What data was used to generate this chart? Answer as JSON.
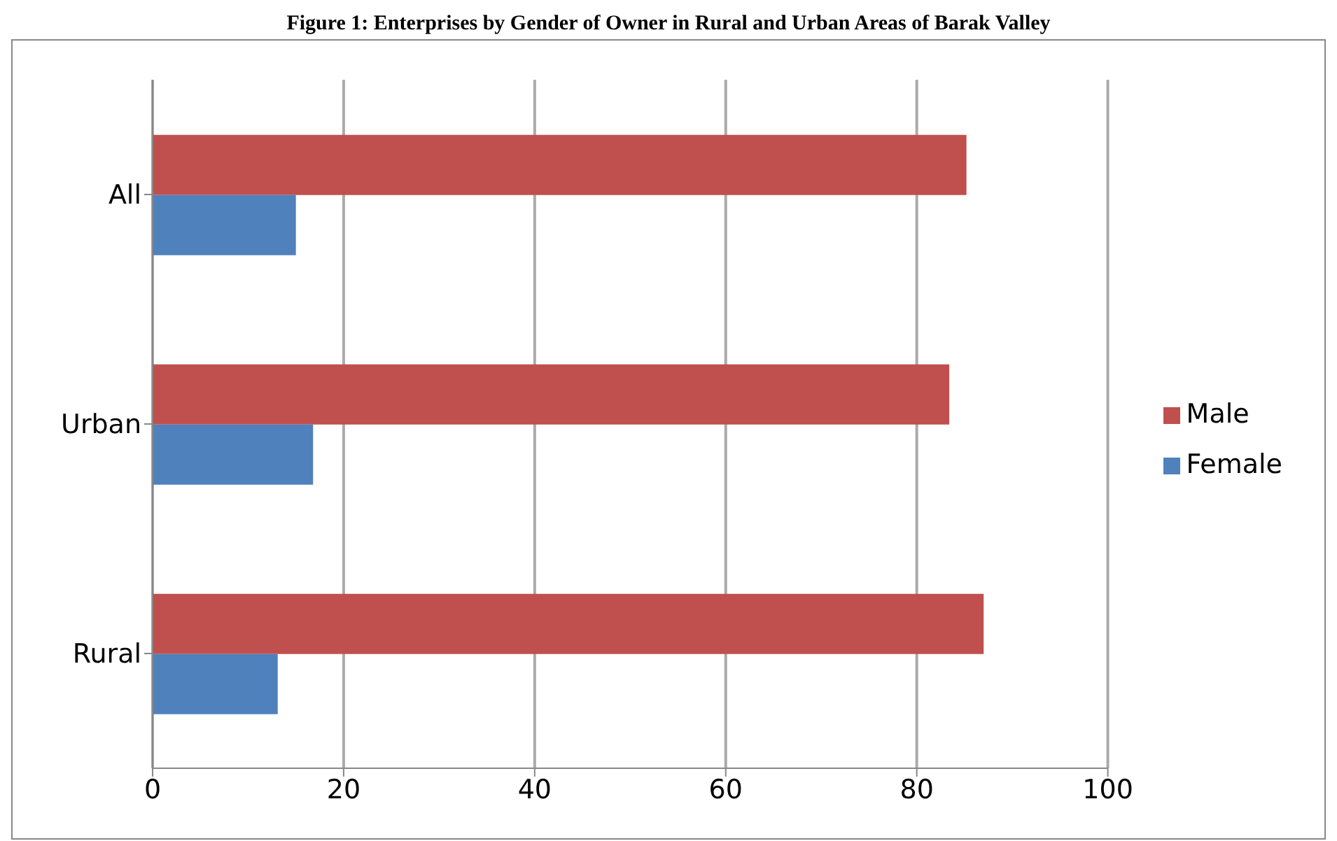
{
  "chart_data": {
    "type": "bar",
    "orientation": "horizontal",
    "title": "Figure 1: Enterprises by Gender of Owner in Rural and Urban Areas of Barak Valley",
    "categories": [
      "All",
      "Urban",
      "Rural"
    ],
    "series": [
      {
        "name": "Male",
        "color": "#c0504d",
        "values": [
          85.2,
          83.4,
          87.0
        ]
      },
      {
        "name": "Female",
        "color": "#4f81bd",
        "values": [
          15.0,
          16.8,
          13.1
        ]
      }
    ],
    "xlim": [
      0,
      100
    ],
    "xticks": [
      0,
      20,
      40,
      60,
      80,
      100
    ],
    "grid": "x",
    "legend": "right"
  }
}
